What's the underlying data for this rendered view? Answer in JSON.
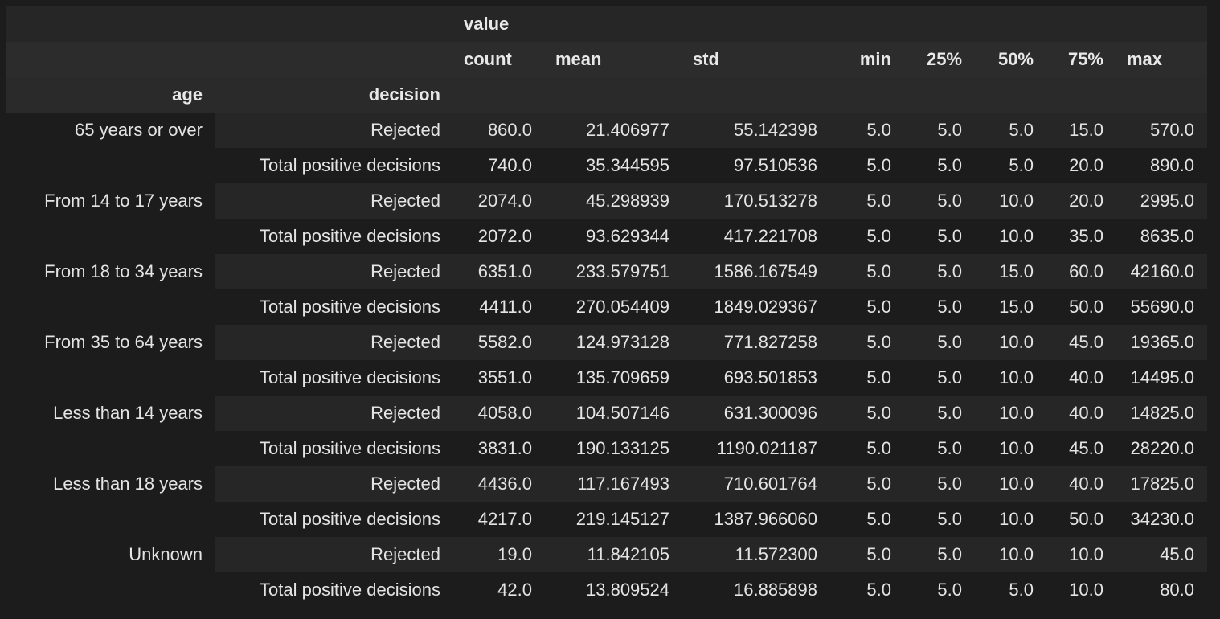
{
  "table": {
    "top_header": "value",
    "index_names": [
      "age",
      "decision"
    ],
    "columns": [
      "count",
      "mean",
      "std",
      "min",
      "25%",
      "50%",
      "75%",
      "max"
    ],
    "groups": [
      {
        "age": "65 years or over",
        "rows": [
          {
            "decision": "Rejected",
            "values": [
              "860.0",
              "21.406977",
              "55.142398",
              "5.0",
              "5.0",
              "5.0",
              "15.0",
              "570.0"
            ]
          },
          {
            "decision": "Total positive decisions",
            "values": [
              "740.0",
              "35.344595",
              "97.510536",
              "5.0",
              "5.0",
              "5.0",
              "20.0",
              "890.0"
            ]
          }
        ]
      },
      {
        "age": "From 14 to 17 years",
        "rows": [
          {
            "decision": "Rejected",
            "values": [
              "2074.0",
              "45.298939",
              "170.513278",
              "5.0",
              "5.0",
              "10.0",
              "20.0",
              "2995.0"
            ]
          },
          {
            "decision": "Total positive decisions",
            "values": [
              "2072.0",
              "93.629344",
              "417.221708",
              "5.0",
              "5.0",
              "10.0",
              "35.0",
              "8635.0"
            ]
          }
        ]
      },
      {
        "age": "From 18 to 34 years",
        "rows": [
          {
            "decision": "Rejected",
            "values": [
              "6351.0",
              "233.579751",
              "1586.167549",
              "5.0",
              "5.0",
              "15.0",
              "60.0",
              "42160.0"
            ]
          },
          {
            "decision": "Total positive decisions",
            "values": [
              "4411.0",
              "270.054409",
              "1849.029367",
              "5.0",
              "5.0",
              "15.0",
              "50.0",
              "55690.0"
            ]
          }
        ]
      },
      {
        "age": "From 35 to 64 years",
        "rows": [
          {
            "decision": "Rejected",
            "values": [
              "5582.0",
              "124.973128",
              "771.827258",
              "5.0",
              "5.0",
              "10.0",
              "45.0",
              "19365.0"
            ]
          },
          {
            "decision": "Total positive decisions",
            "values": [
              "3551.0",
              "135.709659",
              "693.501853",
              "5.0",
              "5.0",
              "10.0",
              "40.0",
              "14495.0"
            ]
          }
        ]
      },
      {
        "age": "Less than 14 years",
        "rows": [
          {
            "decision": "Rejected",
            "values": [
              "4058.0",
              "104.507146",
              "631.300096",
              "5.0",
              "5.0",
              "10.0",
              "40.0",
              "14825.0"
            ]
          },
          {
            "decision": "Total positive decisions",
            "values": [
              "3831.0",
              "190.133125",
              "1190.021187",
              "5.0",
              "5.0",
              "10.0",
              "45.0",
              "28220.0"
            ]
          }
        ]
      },
      {
        "age": "Less than 18 years",
        "rows": [
          {
            "decision": "Rejected",
            "values": [
              "4436.0",
              "117.167493",
              "710.601764",
              "5.0",
              "5.0",
              "10.0",
              "40.0",
              "17825.0"
            ]
          },
          {
            "decision": "Total positive decisions",
            "values": [
              "4217.0",
              "219.145127",
              "1387.966060",
              "5.0",
              "5.0",
              "10.0",
              "50.0",
              "34230.0"
            ]
          }
        ]
      },
      {
        "age": "Unknown",
        "rows": [
          {
            "decision": "Rejected",
            "values": [
              "19.0",
              "11.842105",
              "11.572300",
              "5.0",
              "5.0",
              "10.0",
              "10.0",
              "45.0"
            ]
          },
          {
            "decision": "Total positive decisions",
            "values": [
              "42.0",
              "13.809524",
              "16.885898",
              "5.0",
              "5.0",
              "5.0",
              "10.0",
              "80.0"
            ]
          }
        ]
      }
    ]
  }
}
